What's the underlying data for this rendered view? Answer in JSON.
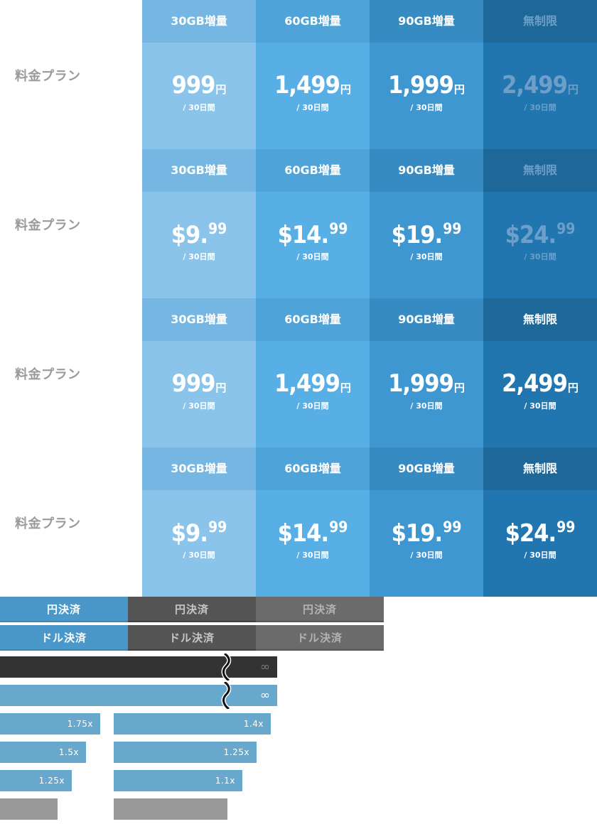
{
  "plan_label": "料金プラン",
  "period": "/ 30日間",
  "sections": [
    {
      "dim_unlimited": true,
      "columns": [
        {
          "header": "30GB増量",
          "num": "999",
          "unit": "円"
        },
        {
          "header": "60GB増量",
          "num": "1,499",
          "unit": "円"
        },
        {
          "header": "90GB増量",
          "num": "1,999",
          "unit": "円"
        },
        {
          "header": "無制限",
          "num": "2,499",
          "unit": "円"
        }
      ]
    },
    {
      "dim_unlimited": true,
      "columns": [
        {
          "header": "30GB増量",
          "num": "$9.",
          "cents": "99"
        },
        {
          "header": "60GB増量",
          "num": "$14.",
          "cents": "99"
        },
        {
          "header": "90GB増量",
          "num": "$19.",
          "cents": "99"
        },
        {
          "header": "無制限",
          "num": "$24.",
          "cents": "99"
        }
      ]
    },
    {
      "dim_unlimited": false,
      "columns": [
        {
          "header": "30GB増量",
          "num": "999",
          "unit": "円"
        },
        {
          "header": "60GB増量",
          "num": "1,499",
          "unit": "円"
        },
        {
          "header": "90GB増量",
          "num": "1,999",
          "unit": "円"
        },
        {
          "header": "無制限",
          "num": "2,499",
          "unit": "円"
        }
      ]
    },
    {
      "dim_unlimited": false,
      "columns": [
        {
          "header": "30GB増量",
          "num": "$9.",
          "cents": "99"
        },
        {
          "header": "60GB増量",
          "num": "$14.",
          "cents": "99"
        },
        {
          "header": "90GB増量",
          "num": "$19.",
          "cents": "99"
        },
        {
          "header": "無制限",
          "num": "$24.",
          "cents": "99"
        }
      ]
    }
  ],
  "buttons": {
    "yen": [
      "円決済",
      "円決済",
      "円決済"
    ],
    "dollar": [
      "ドル決済",
      "ドル決済",
      "ドル決済"
    ],
    "states": [
      "active",
      "hover",
      "disabled"
    ]
  },
  "bars": {
    "infinity": "∞",
    "left_multipliers": [
      "1.75x",
      "1.5x",
      "1.25x"
    ],
    "right_multipliers": [
      "1.4x",
      "1.25x",
      "1.1x"
    ],
    "colors": {
      "black": "#333333",
      "blue": "#68a8cc",
      "gray": "#999999"
    }
  }
}
